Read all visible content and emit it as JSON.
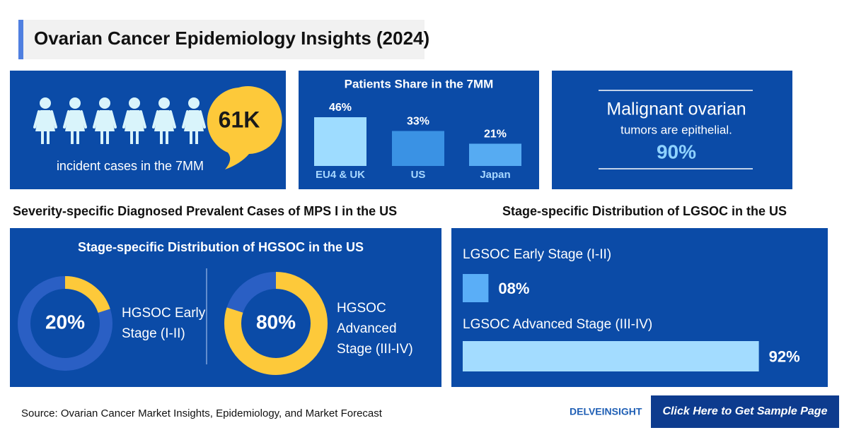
{
  "title": "Ovarian Cancer Epidemiology Insights (2024)",
  "incident": {
    "headline": "61K",
    "caption": "incident cases in the 7MM"
  },
  "patients_share": {
    "type": "bar",
    "title": "Patients Share in the 7MM",
    "categories": [
      "EU4 & UK",
      "US",
      "Japan"
    ],
    "values": [
      46,
      33,
      21
    ],
    "value_labels": [
      "46%",
      "33%",
      "21%"
    ],
    "colors": [
      "#9edcff",
      "#3a92e4",
      "#56abf2"
    ]
  },
  "malignant": {
    "line1": "Malignant ovarian",
    "line2": "tumors are epithelial.",
    "headline": "90%"
  },
  "left_heading": "Severity-specific Diagnosed Prevalent Cases of MPS I in the US",
  "right_heading": "Stage-specific Distribution of LGSOC in the US",
  "hgsoc": {
    "type": "donut",
    "title": "Stage-specific Distribution of HGSOC in the US",
    "color": "#fdc93a",
    "track_color": "#2a5fc4",
    "items": [
      {
        "label_lines": [
          "HGSOC Early",
          "Stage (I-II)"
        ],
        "value": 20,
        "value_label": "20%"
      },
      {
        "label_lines": [
          "HGSOC",
          "Advanced",
          "Stage (III-IV)"
        ],
        "value": 80,
        "value_label": "80%"
      }
    ]
  },
  "lgsoc": {
    "type": "hbar",
    "categories": [
      "LGSOC Early Stage (I-II)",
      "LGSOC Advanced Stage (III-IV)"
    ],
    "values": [
      8,
      92
    ],
    "value_labels": [
      "08%",
      "92%"
    ],
    "colors": [
      "#5aaef7",
      "#a3dcff"
    ]
  },
  "source": "Source: Ovarian Cancer Market Insights, Epidemiology, and Market Forecast",
  "logo": "DELVEINSIGHT",
  "cta": "Click Here to Get Sample Page"
}
